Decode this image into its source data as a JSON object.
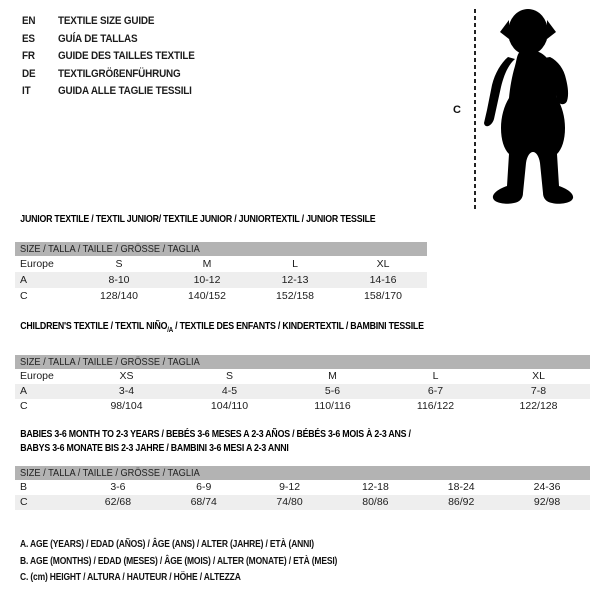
{
  "header": {
    "languages": [
      {
        "code": "EN",
        "label": "TEXTILE SIZE GUIDE"
      },
      {
        "code": "ES",
        "label": "GUÍA DE TALLAS"
      },
      {
        "code": "FR",
        "label": "GUIDE DES TAILLES TEXTILE"
      },
      {
        "code": "DE",
        "label": "TEXTILGRÖßENFÜHRUNG"
      },
      {
        "code": "IT",
        "label": "GUIDA ALLE TAGLIE TESSILI"
      }
    ]
  },
  "figure": {
    "height_marker": "C",
    "silhouette": "toddler-silhouette"
  },
  "tables": [
    {
      "title_parts": [
        {
          "text": "JUNIOR TEXTILE / TEXTIL JUNIOR/ TEXTILE JUNIOR / JUNIORTEXTIL / JUNIOR TESSILE"
        }
      ],
      "band": "SIZE / TALLA / TAILLE / GRÖSSE / TAGLIA",
      "rows": [
        {
          "label": "Europe",
          "cells": [
            "S",
            "M",
            "L",
            "XL"
          ],
          "shaded": false
        },
        {
          "label": "A",
          "cells": [
            "8-10",
            "10-12",
            "12-13",
            "14-16"
          ],
          "shaded": true
        },
        {
          "label": "C",
          "cells": [
            "128/140",
            "140/152",
            "152/158",
            "158/170"
          ],
          "shaded": false
        }
      ]
    },
    {
      "title_parts": [
        {
          "text": "CHILDREN'S TEXTILE / TEXTIL NIÑO"
        },
        {
          "text": "/A",
          "sub": true
        },
        {
          "text": " / TEXTILE DES ENFANTS / KINDERTEXTIL / BAMBINI TESSILE"
        }
      ],
      "band": "SIZE / TALLA / TAILLE / GRÖSSE / TAGLIA",
      "rows": [
        {
          "label": "Europe",
          "cells": [
            "XS",
            "S",
            "M",
            "L",
            "XL"
          ],
          "shaded": false
        },
        {
          "label": "A",
          "cells": [
            "3-4",
            "4-5",
            "5-6",
            "6-7",
            "7-8"
          ],
          "shaded": true
        },
        {
          "label": "C",
          "cells": [
            "98/104",
            "104/110",
            "110/116",
            "116/122",
            "122/128"
          ],
          "shaded": false
        }
      ]
    },
    {
      "title_parts": [
        {
          "text": "BABIES 3-6 MONTH TO 2-3 YEARS / BEBÉS 3-6 MESES A 2-3 AÑOS / BÉBÉS 3-6 MOIS À 2-3 ANS /"
        },
        {
          "text": "BABYS 3-6 MONATE BIS 2-3 JAHRE / BAMBINI 3-6 MESI A 2-3 ANNI",
          "break": true
        }
      ],
      "band": "SIZE / TALLA / TAILLE / GRÖSSE / TAGLIA",
      "rows": [
        {
          "label": "B",
          "cells": [
            "3-6",
            "6-9",
            "9-12",
            "12-18",
            "18-24",
            "24-36"
          ],
          "shaded": false
        },
        {
          "label": "C",
          "cells": [
            "62/68",
            "68/74",
            "74/80",
            "80/86",
            "86/92",
            "92/98"
          ],
          "shaded": true
        }
      ]
    }
  ],
  "footnotes": [
    "A. AGE (YEARS) / EDAD (AÑOS) / ÂGE (ANS) / ALTER (JAHRE) / ETÀ (ANNI)",
    "B. AGE (MONTHS) / EDAD (MESES) / ÂGE (MOIS) / ALTER (MONATE) / ETÀ (MESI)",
    "C. (cm) HEIGHT / ALTURA / HAUTEUR / HÖHE / ALTEZZA"
  ],
  "colors": {
    "band_gray": "#b3b3b3",
    "stripe_gray": "#eeeeee",
    "text_dark": "#1c1c1c",
    "silhouette_black": "#000000"
  }
}
